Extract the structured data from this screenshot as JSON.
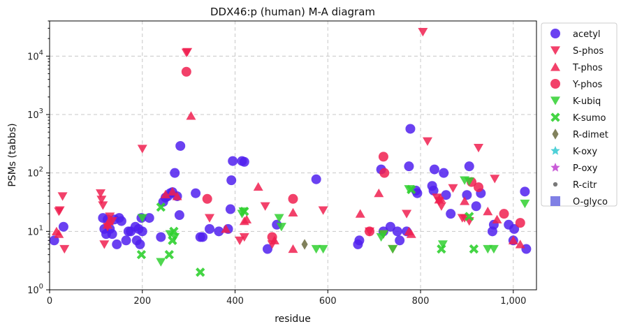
{
  "chart_data": {
    "type": "scatter",
    "title": "DDX46:p (human) M-A diagram",
    "xlabel": "residue",
    "ylabel": "PSMs (tabbs)",
    "xlim": [
      0,
      1050
    ],
    "ylim": [
      1,
      40000
    ],
    "yscale": "log",
    "grid": true,
    "legend_position": "right",
    "x_ticks": [
      {
        "value": 0,
        "label": "0"
      },
      {
        "value": 200,
        "label": "200"
      },
      {
        "value": 400,
        "label": "400"
      },
      {
        "value": 600,
        "label": "600"
      },
      {
        "value": 800,
        "label": "800"
      },
      {
        "value": 1000,
        "label": "1,000"
      }
    ],
    "y_ticks": [
      {
        "value": 1,
        "base": "10",
        "exp": "0"
      },
      {
        "value": 10,
        "base": "10",
        "exp": "1"
      },
      {
        "value": 100,
        "base": "10",
        "exp": "2"
      },
      {
        "value": 1000,
        "base": "10",
        "exp": "3"
      },
      {
        "value": 10000,
        "base": "10",
        "exp": "4"
      }
    ],
    "series": [
      {
        "name": "acetyl",
        "marker": "circle",
        "color": "#5020ee",
        "points": [
          [
            10,
            7
          ],
          [
            30,
            12
          ],
          [
            115,
            17
          ],
          [
            118,
            11
          ],
          [
            122,
            9
          ],
          [
            125,
            16
          ],
          [
            130,
            11
          ],
          [
            135,
            9
          ],
          [
            140,
            16
          ],
          [
            145,
            6
          ],
          [
            150,
            17
          ],
          [
            155,
            15
          ],
          [
            165,
            7
          ],
          [
            170,
            10
          ],
          [
            175,
            10
          ],
          [
            185,
            12
          ],
          [
            188,
            7
          ],
          [
            192,
            11
          ],
          [
            195,
            6
          ],
          [
            198,
            17
          ],
          [
            200,
            10
          ],
          [
            215,
            17
          ],
          [
            240,
            8
          ],
          [
            245,
            32
          ],
          [
            250,
            38
          ],
          [
            255,
            40
          ],
          [
            260,
            45
          ],
          [
            265,
            47
          ],
          [
            270,
            100
          ],
          [
            275,
            40
          ],
          [
            280,
            19
          ],
          [
            282,
            290
          ],
          [
            315,
            45
          ],
          [
            325,
            8
          ],
          [
            330,
            8
          ],
          [
            345,
            11
          ],
          [
            365,
            10
          ],
          [
            385,
            11
          ],
          [
            390,
            24
          ],
          [
            392,
            75
          ],
          [
            395,
            160
          ],
          [
            415,
            160
          ],
          [
            420,
            155
          ],
          [
            470,
            5
          ],
          [
            490,
            13
          ],
          [
            575,
            78
          ],
          [
            665,
            6
          ],
          [
            668,
            7
          ],
          [
            715,
            115
          ],
          [
            720,
            10
          ],
          [
            735,
            12
          ],
          [
            750,
            10
          ],
          [
            755,
            7
          ],
          [
            770,
            10
          ],
          [
            775,
            130
          ],
          [
            778,
            570
          ],
          [
            790,
            50
          ],
          [
            793,
            45
          ],
          [
            825,
            60
          ],
          [
            828,
            50
          ],
          [
            830,
            115
          ],
          [
            850,
            100
          ],
          [
            855,
            42
          ],
          [
            865,
            20
          ],
          [
            900,
            42
          ],
          [
            905,
            130
          ],
          [
            920,
            27
          ],
          [
            930,
            45
          ],
          [
            955,
            10
          ],
          [
            958,
            13
          ],
          [
            990,
            13
          ],
          [
            1000,
            7
          ],
          [
            1002,
            11
          ],
          [
            1025,
            48
          ],
          [
            1028,
            5
          ]
        ]
      },
      {
        "name": "S-phos",
        "marker": "triangle-down",
        "color": "#f02050",
        "points": [
          [
            20,
            22
          ],
          [
            22,
            23
          ],
          [
            28,
            40
          ],
          [
            32,
            5
          ],
          [
            110,
            45
          ],
          [
            112,
            35
          ],
          [
            115,
            28
          ],
          [
            118,
            6
          ],
          [
            125,
            12
          ],
          [
            130,
            18
          ],
          [
            135,
            15
          ],
          [
            200,
            260
          ],
          [
            295,
            11500
          ],
          [
            297,
            11800
          ],
          [
            345,
            17
          ],
          [
            410,
            7
          ],
          [
            420,
            8
          ],
          [
            465,
            27
          ],
          [
            480,
            6
          ],
          [
            590,
            23
          ],
          [
            690,
            10
          ],
          [
            720,
            9
          ],
          [
            740,
            5
          ],
          [
            770,
            20
          ],
          [
            805,
            26000
          ],
          [
            815,
            350
          ],
          [
            835,
            38
          ],
          [
            840,
            33
          ],
          [
            845,
            27
          ],
          [
            870,
            55
          ],
          [
            890,
            17
          ],
          [
            895,
            17
          ],
          [
            905,
            15
          ],
          [
            925,
            270
          ],
          [
            960,
            80
          ]
        ]
      },
      {
        "name": "T-phos",
        "marker": "triangle-up",
        "color": "#f02050",
        "points": [
          [
            15,
            10
          ],
          [
            20,
            9
          ],
          [
            125,
            13
          ],
          [
            128,
            15
          ],
          [
            250,
            43
          ],
          [
            265,
            48
          ],
          [
            275,
            40
          ],
          [
            305,
            950
          ],
          [
            380,
            11
          ],
          [
            420,
            15
          ],
          [
            425,
            16
          ],
          [
            450,
            58
          ],
          [
            485,
            7
          ],
          [
            525,
            5
          ],
          [
            525,
            21
          ],
          [
            670,
            20
          ],
          [
            710,
            45
          ],
          [
            775,
            10
          ],
          [
            780,
            9
          ],
          [
            840,
            35
          ],
          [
            843,
            37
          ],
          [
            895,
            33
          ],
          [
            945,
            22
          ],
          [
            965,
            16
          ],
          [
            1000,
            7
          ],
          [
            1015,
            6
          ]
        ]
      },
      {
        "name": "Y-phos",
        "marker": "circle",
        "color": "#f02050",
        "points": [
          [
            295,
            5400
          ],
          [
            340,
            36
          ],
          [
            480,
            8
          ],
          [
            525,
            36
          ],
          [
            690,
            10
          ],
          [
            720,
            190
          ],
          [
            722,
            100
          ],
          [
            910,
            70
          ],
          [
            925,
            57
          ],
          [
            980,
            20
          ],
          [
            1015,
            14
          ]
        ]
      },
      {
        "name": "K-ubiq",
        "marker": "triangle-down",
        "color": "#30d030",
        "points": [
          [
            200,
            17
          ],
          [
            240,
            3
          ],
          [
            260,
            9
          ],
          [
            270,
            8
          ],
          [
            415,
            20
          ],
          [
            418,
            22
          ],
          [
            495,
            17
          ],
          [
            500,
            12
          ],
          [
            575,
            5
          ],
          [
            590,
            5
          ],
          [
            715,
            8
          ],
          [
            720,
            9
          ],
          [
            740,
            5
          ],
          [
            775,
            53
          ],
          [
            848,
            6
          ],
          [
            895,
            75
          ],
          [
            905,
            72
          ],
          [
            945,
            5
          ],
          [
            958,
            5
          ],
          [
            1025,
            30
          ]
        ]
      },
      {
        "name": "K-sumo",
        "marker": "x",
        "color": "#30d030",
        "points": [
          [
            198,
            4
          ],
          [
            240,
            26
          ],
          [
            258,
            4
          ],
          [
            265,
            7
          ],
          [
            268,
            10
          ],
          [
            325,
            2
          ],
          [
            420,
            22
          ],
          [
            780,
            52
          ],
          [
            845,
            5
          ],
          [
            905,
            18
          ],
          [
            915,
            5
          ]
        ]
      },
      {
        "name": "R-dimet",
        "marker": "diamond",
        "color": "#6b6b40",
        "points": [
          [
            550,
            6
          ]
        ]
      },
      {
        "name": "K-oxy",
        "marker": "star",
        "color": "#30c8d0",
        "points": []
      },
      {
        "name": "P-oxy",
        "marker": "star",
        "color": "#c040d0",
        "points": []
      },
      {
        "name": "R-citr",
        "marker": "dot",
        "color": "#606060",
        "points": []
      },
      {
        "name": "O-glyco",
        "marker": "square",
        "color": "#6a6ae0",
        "points": []
      }
    ]
  }
}
